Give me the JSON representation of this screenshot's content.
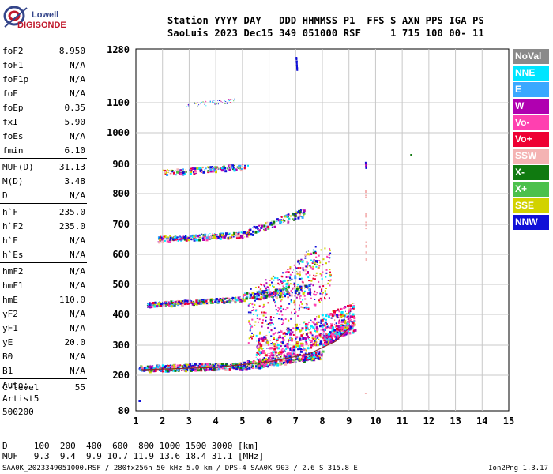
{
  "logo": {
    "line1": "Lowell",
    "line2": "DIGISONDE"
  },
  "header": {
    "line1": "Station YYYY DAY   DDD HHMMSS P1  FFS S AXN PPS IGA PS",
    "line2": "SaoLuis 2023 Dec15 349 051000 RSF     1 715 100 00- 11"
  },
  "params": {
    "group1": [
      {
        "name": "foF2",
        "value": "8.950"
      },
      {
        "name": "foF1",
        "value": "N/A"
      },
      {
        "name": "foF1p",
        "value": "N/A"
      },
      {
        "name": "foE",
        "value": "N/A"
      },
      {
        "name": "foEp",
        "value": "0.35"
      },
      {
        "name": "fxI",
        "value": "5.90"
      },
      {
        "name": "foEs",
        "value": "N/A"
      },
      {
        "name": "fmin",
        "value": "6.10"
      }
    ],
    "group2": [
      {
        "name": "MUF(D)",
        "value": "31.13"
      },
      {
        "name": "M(D)",
        "value": "3.48"
      },
      {
        "name": "D",
        "value": "N/A"
      }
    ],
    "group3": [
      {
        "name": "h`F",
        "value": "235.0"
      },
      {
        "name": "h`F2",
        "value": "235.0"
      },
      {
        "name": "h`E",
        "value": "N/A"
      },
      {
        "name": "h`Es",
        "value": "N/A"
      }
    ],
    "group4": [
      {
        "name": "hmF2",
        "value": "N/A"
      },
      {
        "name": "hmF1",
        "value": "N/A"
      },
      {
        "name": "hmE",
        "value": "110.0"
      },
      {
        "name": "yF2",
        "value": "N/A"
      },
      {
        "name": "yF1",
        "value": "N/A"
      },
      {
        "name": "yE",
        "value": "20.0"
      },
      {
        "name": "B0",
        "value": "N/A"
      },
      {
        "name": "B1",
        "value": "N/A"
      }
    ],
    "group5": [
      {
        "name": "C-level",
        "value": "55"
      }
    ]
  },
  "auto": {
    "line1": "Auto:",
    "line2": "Artist5",
    "line3": "500200"
  },
  "legend": [
    {
      "label": "NoVal",
      "color": "#8a8a8a"
    },
    {
      "label": "NNE",
      "color": "#00e5ff"
    },
    {
      "label": "E",
      "color": "#3aa8ff"
    },
    {
      "label": "W",
      "color": "#b000b0"
    },
    {
      "label": "Vo-",
      "color": "#ff40b0"
    },
    {
      "label": "Vo+",
      "color": "#ee0033"
    },
    {
      "label": "SSW",
      "color": "#f4b3b3"
    },
    {
      "label": "X-",
      "color": "#107a10"
    },
    {
      "label": "X+",
      "color": "#4cc04c"
    },
    {
      "label": "SSE",
      "color": "#d2d200"
    },
    {
      "label": "NNW",
      "color": "#1010d8"
    }
  ],
  "axes": {
    "x_ticks": [
      "1",
      "2",
      "3",
      "4",
      "5",
      "6",
      "7",
      "8",
      "9",
      "10",
      "11",
      "12",
      "13",
      "14",
      "15"
    ],
    "y_ticks": [
      "1280",
      "1100",
      "1000",
      "900",
      "800",
      "700",
      "600",
      "500",
      "400",
      "300",
      "200",
      "80"
    ]
  },
  "bottom": {
    "line1": "D     100  200  400  600  800 1000 1500 3000 [km]",
    "line2": "MUF   9.3  9.4  9.9 10.7 11.9 13.6 18.4 31.1 [MHz]"
  },
  "footer": {
    "left": "SAA0K_2023349051000.RSF / 280fx256h 50 kHz 5.0 km / DPS-4 SAA0K 903 / 2.6 S 315.8 E",
    "right": "Ion2Png 1.3.17"
  }
}
